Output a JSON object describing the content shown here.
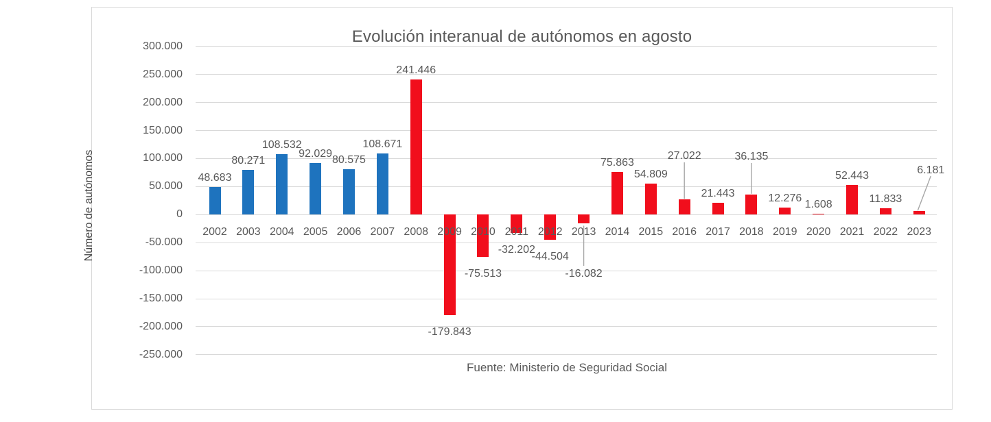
{
  "chart": {
    "title": "Evolución interanual de autónomos en agosto",
    "y_axis_title": "Número de autónomos",
    "source": "Fuente: Ministerio de Seguridad Social"
  },
  "colors": {
    "blue_bar": "#1e73be",
    "red_bar": "#f10e1c",
    "gridline": "#d9d9d9",
    "text": "#595959",
    "leader_line": "#a6a6a6",
    "frame_border": "#d9d9d9"
  },
  "chart_data": {
    "type": "bar",
    "title": "Evolución interanual de autónomos en agosto",
    "xlabel": "",
    "ylabel": "Número de autónomos",
    "ylim": [
      -250000,
      300000
    ],
    "ytick_step": 50000,
    "grid": true,
    "legend": "none",
    "number_format": "thousands-dot",
    "categories": [
      2002,
      2003,
      2004,
      2005,
      2006,
      2007,
      2008,
      2009,
      2010,
      2011,
      2012,
      2013,
      2014,
      2015,
      2016,
      2017,
      2018,
      2019,
      2020,
      2021,
      2022,
      2023
    ],
    "values": [
      48683,
      80271,
      108532,
      92029,
      80575,
      108671,
      241446,
      -179843,
      -75513,
      -32202,
      -44504,
      -16082,
      75863,
      54809,
      27022,
      21443,
      36135,
      12276,
      1608,
      52443,
      11833,
      6181
    ],
    "bar_colors": [
      "blue",
      "blue",
      "blue",
      "blue",
      "blue",
      "blue",
      "red",
      "red",
      "red",
      "red",
      "red",
      "red",
      "red",
      "red",
      "red",
      "red",
      "red",
      "red",
      "red",
      "red",
      "red",
      "red"
    ],
    "data_labels": true,
    "label_overrides": [
      {
        "year": 2013,
        "placement": "moved-below-with-vertical-leader"
      },
      {
        "year": 2016,
        "placement": "raised-with-vertical-leader"
      },
      {
        "year": 2018,
        "placement": "raised-with-vertical-leader"
      },
      {
        "year": 2023,
        "placement": "raised-with-diagonal-leader"
      }
    ]
  }
}
